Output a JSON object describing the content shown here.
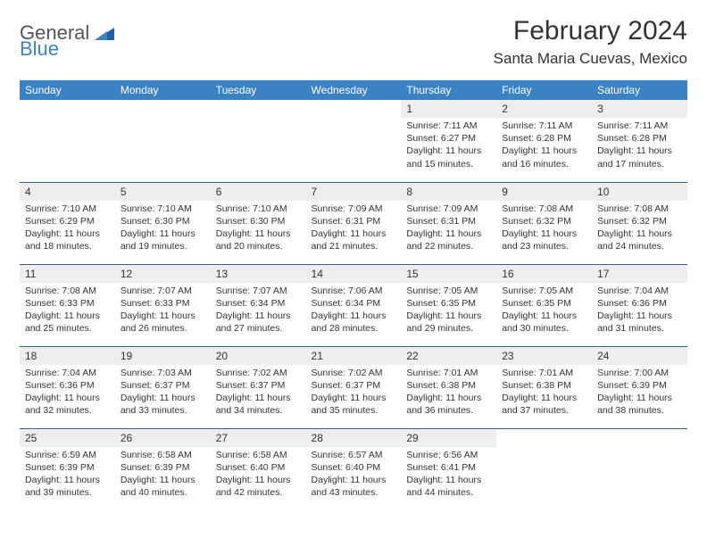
{
  "logo": {
    "general": "General",
    "blue": "Blue"
  },
  "title": "February 2024",
  "location": "Santa Maria Cuevas, Mexico",
  "colors": {
    "header_bg": "#3b82c4",
    "header_text": "#ffffff",
    "daybar_bg": "#eeeeee",
    "rule": "#3b5f8a",
    "logo_gray": "#555555",
    "logo_blue": "#3b82c4"
  },
  "weekdays": [
    "Sunday",
    "Monday",
    "Tuesday",
    "Wednesday",
    "Thursday",
    "Friday",
    "Saturday"
  ],
  "weeks": [
    [
      {
        "n": "",
        "sr": "",
        "ss": "",
        "dl": ""
      },
      {
        "n": "",
        "sr": "",
        "ss": "",
        "dl": ""
      },
      {
        "n": "",
        "sr": "",
        "ss": "",
        "dl": ""
      },
      {
        "n": "",
        "sr": "",
        "ss": "",
        "dl": ""
      },
      {
        "n": "1",
        "sr": "Sunrise: 7:11 AM",
        "ss": "Sunset: 6:27 PM",
        "dl": "Daylight: 11 hours and 15 minutes."
      },
      {
        "n": "2",
        "sr": "Sunrise: 7:11 AM",
        "ss": "Sunset: 6:28 PM",
        "dl": "Daylight: 11 hours and 16 minutes."
      },
      {
        "n": "3",
        "sr": "Sunrise: 7:11 AM",
        "ss": "Sunset: 6:28 PM",
        "dl": "Daylight: 11 hours and 17 minutes."
      }
    ],
    [
      {
        "n": "4",
        "sr": "Sunrise: 7:10 AM",
        "ss": "Sunset: 6:29 PM",
        "dl": "Daylight: 11 hours and 18 minutes."
      },
      {
        "n": "5",
        "sr": "Sunrise: 7:10 AM",
        "ss": "Sunset: 6:30 PM",
        "dl": "Daylight: 11 hours and 19 minutes."
      },
      {
        "n": "6",
        "sr": "Sunrise: 7:10 AM",
        "ss": "Sunset: 6:30 PM",
        "dl": "Daylight: 11 hours and 20 minutes."
      },
      {
        "n": "7",
        "sr": "Sunrise: 7:09 AM",
        "ss": "Sunset: 6:31 PM",
        "dl": "Daylight: 11 hours and 21 minutes."
      },
      {
        "n": "8",
        "sr": "Sunrise: 7:09 AM",
        "ss": "Sunset: 6:31 PM",
        "dl": "Daylight: 11 hours and 22 minutes."
      },
      {
        "n": "9",
        "sr": "Sunrise: 7:08 AM",
        "ss": "Sunset: 6:32 PM",
        "dl": "Daylight: 11 hours and 23 minutes."
      },
      {
        "n": "10",
        "sr": "Sunrise: 7:08 AM",
        "ss": "Sunset: 6:32 PM",
        "dl": "Daylight: 11 hours and 24 minutes."
      }
    ],
    [
      {
        "n": "11",
        "sr": "Sunrise: 7:08 AM",
        "ss": "Sunset: 6:33 PM",
        "dl": "Daylight: 11 hours and 25 minutes."
      },
      {
        "n": "12",
        "sr": "Sunrise: 7:07 AM",
        "ss": "Sunset: 6:33 PM",
        "dl": "Daylight: 11 hours and 26 minutes."
      },
      {
        "n": "13",
        "sr": "Sunrise: 7:07 AM",
        "ss": "Sunset: 6:34 PM",
        "dl": "Daylight: 11 hours and 27 minutes."
      },
      {
        "n": "14",
        "sr": "Sunrise: 7:06 AM",
        "ss": "Sunset: 6:34 PM",
        "dl": "Daylight: 11 hours and 28 minutes."
      },
      {
        "n": "15",
        "sr": "Sunrise: 7:05 AM",
        "ss": "Sunset: 6:35 PM",
        "dl": "Daylight: 11 hours and 29 minutes."
      },
      {
        "n": "16",
        "sr": "Sunrise: 7:05 AM",
        "ss": "Sunset: 6:35 PM",
        "dl": "Daylight: 11 hours and 30 minutes."
      },
      {
        "n": "17",
        "sr": "Sunrise: 7:04 AM",
        "ss": "Sunset: 6:36 PM",
        "dl": "Daylight: 11 hours and 31 minutes."
      }
    ],
    [
      {
        "n": "18",
        "sr": "Sunrise: 7:04 AM",
        "ss": "Sunset: 6:36 PM",
        "dl": "Daylight: 11 hours and 32 minutes."
      },
      {
        "n": "19",
        "sr": "Sunrise: 7:03 AM",
        "ss": "Sunset: 6:37 PM",
        "dl": "Daylight: 11 hours and 33 minutes."
      },
      {
        "n": "20",
        "sr": "Sunrise: 7:02 AM",
        "ss": "Sunset: 6:37 PM",
        "dl": "Daylight: 11 hours and 34 minutes."
      },
      {
        "n": "21",
        "sr": "Sunrise: 7:02 AM",
        "ss": "Sunset: 6:37 PM",
        "dl": "Daylight: 11 hours and 35 minutes."
      },
      {
        "n": "22",
        "sr": "Sunrise: 7:01 AM",
        "ss": "Sunset: 6:38 PM",
        "dl": "Daylight: 11 hours and 36 minutes."
      },
      {
        "n": "23",
        "sr": "Sunrise: 7:01 AM",
        "ss": "Sunset: 6:38 PM",
        "dl": "Daylight: 11 hours and 37 minutes."
      },
      {
        "n": "24",
        "sr": "Sunrise: 7:00 AM",
        "ss": "Sunset: 6:39 PM",
        "dl": "Daylight: 11 hours and 38 minutes."
      }
    ],
    [
      {
        "n": "25",
        "sr": "Sunrise: 6:59 AM",
        "ss": "Sunset: 6:39 PM",
        "dl": "Daylight: 11 hours and 39 minutes."
      },
      {
        "n": "26",
        "sr": "Sunrise: 6:58 AM",
        "ss": "Sunset: 6:39 PM",
        "dl": "Daylight: 11 hours and 40 minutes."
      },
      {
        "n": "27",
        "sr": "Sunrise: 6:58 AM",
        "ss": "Sunset: 6:40 PM",
        "dl": "Daylight: 11 hours and 42 minutes."
      },
      {
        "n": "28",
        "sr": "Sunrise: 6:57 AM",
        "ss": "Sunset: 6:40 PM",
        "dl": "Daylight: 11 hours and 43 minutes."
      },
      {
        "n": "29",
        "sr": "Sunrise: 6:56 AM",
        "ss": "Sunset: 6:41 PM",
        "dl": "Daylight: 11 hours and 44 minutes."
      },
      {
        "n": "",
        "sr": "",
        "ss": "",
        "dl": ""
      },
      {
        "n": "",
        "sr": "",
        "ss": "",
        "dl": ""
      }
    ]
  ]
}
